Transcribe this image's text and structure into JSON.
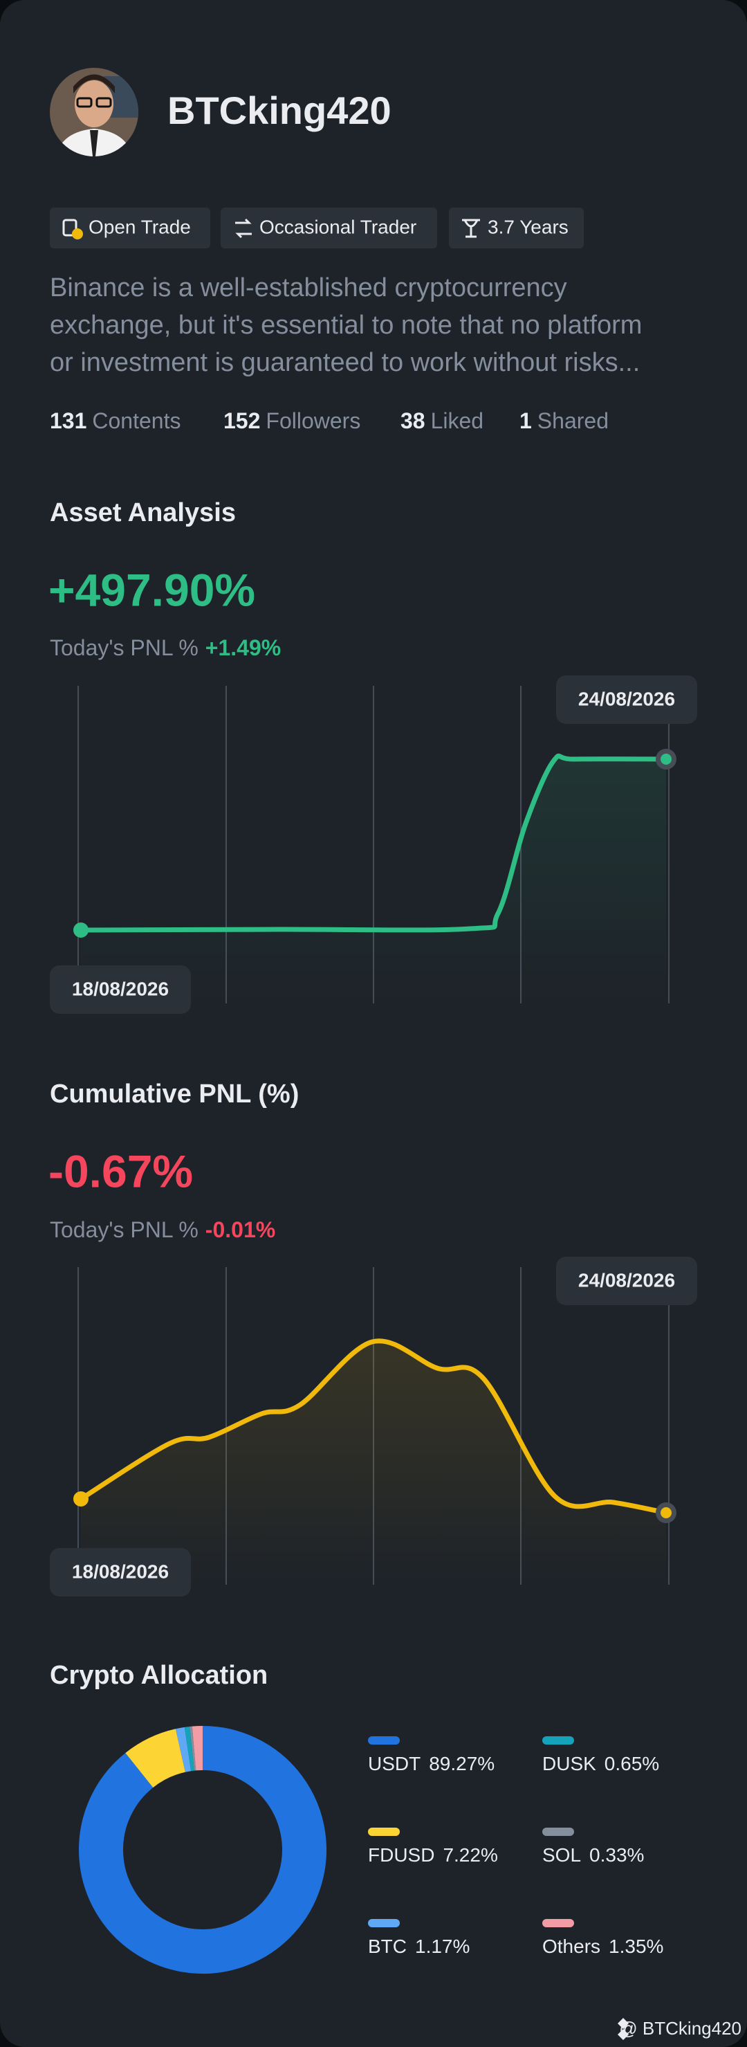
{
  "profile": {
    "name": "BTCking420",
    "tags": [
      "Open Trade",
      "Occasional Trader",
      "3.7 Years"
    ],
    "description": [
      "Binance is a well-established cryptocurrency",
      "exchange, but it's essential to note that no platform",
      "or investment is guaranteed to work without risks..."
    ],
    "stats": [
      {
        "value": 131,
        "label": "Contents"
      },
      {
        "value": 152,
        "label": "Followers"
      },
      {
        "value": 38,
        "label": "Liked"
      },
      {
        "value": 1,
        "label": "Shared"
      }
    ]
  },
  "asset_analysis": {
    "title": "Asset Analysis",
    "value": "+497.90%",
    "today_label": "Today's PNL %",
    "today_value": "+1.49%",
    "start_date": "18/08/2026",
    "end_date": "24/08/2026"
  },
  "cumulative_pnl": {
    "title": "Cumulative PNL (%)",
    "value": "-0.67%",
    "today_label": "Today's PNL %",
    "today_value": "-0.01%",
    "start_date": "18/08/2026",
    "end_date": "24/08/2026"
  },
  "chart_data": {
    "type": "pie",
    "title": "Crypto Allocation",
    "categories": [
      "USDT",
      "FDUSD",
      "BTC",
      "DUSK",
      "SOL",
      "Others"
    ],
    "values": [
      89.27,
      7.22,
      1.17,
      0.65,
      0.33,
      1.35
    ],
    "value_labels": [
      "89.27%",
      "7.22%",
      "1.17%",
      "0.65%",
      "0.33%",
      "1.35%"
    ],
    "colors": [
      "#2173e0",
      "#fcd535",
      "#5fa8f5",
      "#14a3b8",
      "#848e9c",
      "#f29ca6"
    ]
  },
  "watermark": "@ BTCking420"
}
